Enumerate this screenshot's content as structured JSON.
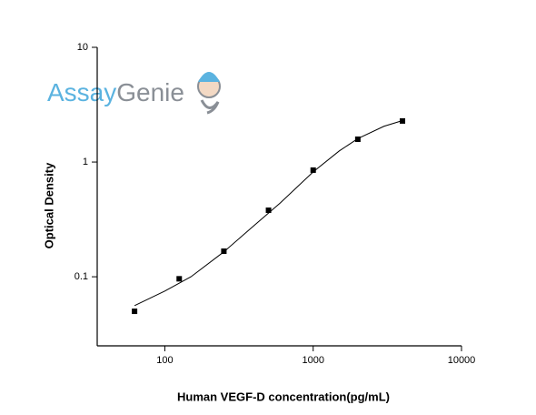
{
  "watermark": [
    "Assay",
    "Genie"
  ],
  "chart_data": {
    "type": "scatter",
    "x_label": "Human VEGF-D concentration(pg/mL)",
    "y_label": "Optical Density",
    "xscale": "log",
    "yscale": "log",
    "xlim": [
      35,
      10000
    ],
    "ylim": [
      0.025,
      10
    ],
    "xticks": [
      100,
      1000,
      10000
    ],
    "yticks": [
      0.1,
      1,
      10
    ],
    "series": [
      {
        "type": "scatter",
        "color": "#000000",
        "x": [
          62.5,
          125,
          250,
          500,
          1000,
          2000,
          4000
        ],
        "values": [
          0.05,
          0.096,
          0.167,
          0.38,
          0.85,
          1.58,
          2.28
        ]
      },
      {
        "type": "line",
        "color": "#000000",
        "x": [
          62.5,
          100,
          150,
          250,
          400,
          600,
          1000,
          1500,
          2000,
          3000,
          4000
        ],
        "values": [
          0.056,
          0.075,
          0.1,
          0.165,
          0.28,
          0.44,
          0.82,
          1.25,
          1.6,
          2.05,
          2.3
        ]
      }
    ]
  }
}
